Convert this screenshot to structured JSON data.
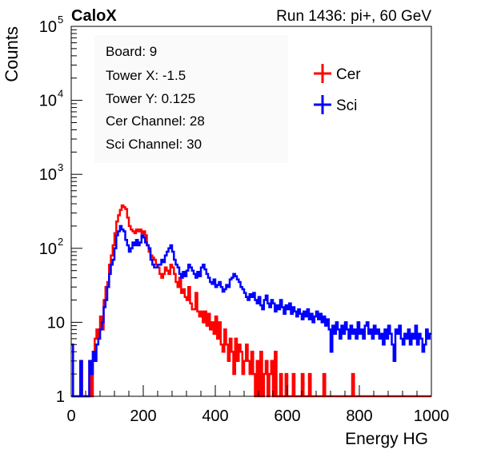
{
  "header": {
    "left_label": "CaloX",
    "right_label": "Run 1436: pi+, 60 GeV"
  },
  "info_box": {
    "lines": [
      "Board: 9",
      "Tower X: -1.5",
      "Tower Y: 0.125",
      "Cer Channel: 28",
      "Sci Channel: 30"
    ]
  },
  "chart_data": {
    "type": "line",
    "style": "step-histogram",
    "xlabel": "Energy HG",
    "ylabel": "Counts",
    "xlim": [
      0,
      1000
    ],
    "ylim": [
      1,
      100000
    ],
    "yscale": "log",
    "grid": false,
    "legend_position": "top-right",
    "x_ticks": [
      "0",
      "200",
      "400",
      "600",
      "800",
      "1000"
    ],
    "y_ticks": [
      {
        "value": 1,
        "base": "1",
        "exp": ""
      },
      {
        "value": 10,
        "base": "10",
        "exp": ""
      },
      {
        "value": 100,
        "base": "10",
        "exp": "2"
      },
      {
        "value": 1000,
        "base": "10",
        "exp": "3"
      },
      {
        "value": 10000,
        "base": "10",
        "exp": "4"
      },
      {
        "value": 100000,
        "base": "10",
        "exp": "5"
      }
    ],
    "series": [
      {
        "name": "Cer",
        "color": "#ff0000",
        "points": [
          [
            0,
            1
          ],
          [
            20,
            1
          ],
          [
            25,
            3
          ],
          [
            30,
            1
          ],
          [
            40,
            1
          ],
          [
            50,
            3
          ],
          [
            55,
            1
          ],
          [
            60,
            4
          ],
          [
            65,
            6
          ],
          [
            70,
            8
          ],
          [
            75,
            6
          ],
          [
            80,
            12
          ],
          [
            85,
            8
          ],
          [
            90,
            20
          ],
          [
            95,
            30
          ],
          [
            100,
            35
          ],
          [
            105,
            60
          ],
          [
            110,
            80
          ],
          [
            115,
            110
          ],
          [
            120,
            160
          ],
          [
            125,
            230
          ],
          [
            130,
            280
          ],
          [
            135,
            330
          ],
          [
            140,
            380
          ],
          [
            145,
            360
          ],
          [
            150,
            340
          ],
          [
            155,
            260
          ],
          [
            160,
            200
          ],
          [
            165,
            180
          ],
          [
            170,
            170
          ],
          [
            175,
            160
          ],
          [
            180,
            180
          ],
          [
            185,
            170
          ],
          [
            190,
            180
          ],
          [
            195,
            160
          ],
          [
            200,
            170
          ],
          [
            205,
            150
          ],
          [
            210,
            110
          ],
          [
            215,
            90
          ],
          [
            220,
            80
          ],
          [
            225,
            75
          ],
          [
            230,
            70
          ],
          [
            235,
            60
          ],
          [
            240,
            55
          ],
          [
            245,
            45
          ],
          [
            250,
            40
          ],
          [
            255,
            45
          ],
          [
            260,
            55
          ],
          [
            265,
            50
          ],
          [
            270,
            45
          ],
          [
            275,
            60
          ],
          [
            280,
            55
          ],
          [
            285,
            45
          ],
          [
            290,
            35
          ],
          [
            295,
            30
          ],
          [
            300,
            40
          ],
          [
            305,
            25
          ],
          [
            310,
            28
          ],
          [
            315,
            22
          ],
          [
            320,
            20
          ],
          [
            325,
            30
          ],
          [
            330,
            18
          ],
          [
            335,
            15
          ],
          [
            340,
            15
          ],
          [
            345,
            25
          ],
          [
            350,
            14
          ],
          [
            355,
            12
          ],
          [
            360,
            14
          ],
          [
            365,
            10
          ],
          [
            370,
            14
          ],
          [
            375,
            9
          ],
          [
            380,
            13
          ],
          [
            385,
            8
          ],
          [
            390,
            10
          ],
          [
            395,
            7
          ],
          [
            400,
            12
          ],
          [
            405,
            6
          ],
          [
            410,
            10
          ],
          [
            415,
            5
          ],
          [
            420,
            4
          ],
          [
            425,
            8
          ],
          [
            430,
            5
          ],
          [
            435,
            3
          ],
          [
            440,
            6
          ],
          [
            445,
            4
          ],
          [
            450,
            2
          ],
          [
            455,
            6
          ],
          [
            460,
            3
          ],
          [
            465,
            5
          ],
          [
            470,
            4
          ],
          [
            475,
            2
          ],
          [
            480,
            3
          ],
          [
            485,
            5
          ],
          [
            490,
            3
          ],
          [
            495,
            2
          ],
          [
            500,
            4
          ],
          [
            505,
            2
          ],
          [
            510,
            1
          ],
          [
            515,
            3
          ],
          [
            520,
            1
          ],
          [
            525,
            4
          ],
          [
            530,
            1
          ],
          [
            535,
            2
          ],
          [
            540,
            3
          ],
          [
            545,
            1
          ],
          [
            550,
            2
          ],
          [
            555,
            3
          ],
          [
            560,
            1
          ],
          [
            565,
            4
          ],
          [
            570,
            1
          ],
          [
            575,
            1
          ],
          [
            580,
            2
          ],
          [
            585,
            1
          ],
          [
            590,
            1
          ],
          [
            595,
            2
          ],
          [
            600,
            1
          ],
          [
            610,
            1
          ],
          [
            615,
            2
          ],
          [
            620,
            1
          ],
          [
            640,
            2
          ],
          [
            645,
            1
          ],
          [
            660,
            2
          ],
          [
            665,
            1
          ],
          [
            700,
            2
          ],
          [
            705,
            1
          ],
          [
            780,
            2
          ],
          [
            785,
            1
          ],
          [
            1000,
            1
          ]
        ]
      },
      {
        "name": "Sci",
        "color": "#0000ff",
        "points": [
          [
            0,
            5
          ],
          [
            5,
            1
          ],
          [
            20,
            1
          ],
          [
            25,
            3
          ],
          [
            30,
            1
          ],
          [
            45,
            1
          ],
          [
            50,
            3
          ],
          [
            55,
            2
          ],
          [
            60,
            4
          ],
          [
            65,
            3
          ],
          [
            70,
            5
          ],
          [
            75,
            6
          ],
          [
            80,
            8
          ],
          [
            85,
            10
          ],
          [
            90,
            16
          ],
          [
            95,
            20
          ],
          [
            100,
            30
          ],
          [
            105,
            45
          ],
          [
            110,
            60
          ],
          [
            115,
            70
          ],
          [
            120,
            100
          ],
          [
            125,
            150
          ],
          [
            130,
            170
          ],
          [
            135,
            200
          ],
          [
            140,
            180
          ],
          [
            145,
            170
          ],
          [
            150,
            130
          ],
          [
            155,
            110
          ],
          [
            160,
            90
          ],
          [
            165,
            100
          ],
          [
            170,
            120
          ],
          [
            175,
            110
          ],
          [
            180,
            130
          ],
          [
            185,
            110
          ],
          [
            190,
            120
          ],
          [
            195,
            150
          ],
          [
            200,
            140
          ],
          [
            205,
            120
          ],
          [
            210,
            110
          ],
          [
            215,
            100
          ],
          [
            220,
            70
          ],
          [
            225,
            60
          ],
          [
            230,
            55
          ],
          [
            235,
            55
          ],
          [
            240,
            60
          ],
          [
            245,
            60
          ],
          [
            250,
            70
          ],
          [
            255,
            65
          ],
          [
            260,
            80
          ],
          [
            265,
            90
          ],
          [
            270,
            100
          ],
          [
            275,
            110
          ],
          [
            280,
            90
          ],
          [
            285,
            70
          ],
          [
            290,
            60
          ],
          [
            295,
            55
          ],
          [
            300,
            45
          ],
          [
            305,
            40
          ],
          [
            310,
            48
          ],
          [
            315,
            42
          ],
          [
            320,
            50
          ],
          [
            325,
            60
          ],
          [
            330,
            55
          ],
          [
            335,
            50
          ],
          [
            340,
            45
          ],
          [
            345,
            40
          ],
          [
            350,
            48
          ],
          [
            355,
            42
          ],
          [
            360,
            55
          ],
          [
            365,
            60
          ],
          [
            370,
            52
          ],
          [
            375,
            45
          ],
          [
            380,
            40
          ],
          [
            385,
            35
          ],
          [
            390,
            33
          ],
          [
            395,
            38
          ],
          [
            400,
            30
          ],
          [
            405,
            32
          ],
          [
            410,
            35
          ],
          [
            415,
            30
          ],
          [
            420,
            26
          ],
          [
            425,
            28
          ],
          [
            430,
            32
          ],
          [
            435,
            30
          ],
          [
            440,
            38
          ],
          [
            445,
            40
          ],
          [
            450,
            45
          ],
          [
            455,
            42
          ],
          [
            460,
            38
          ],
          [
            465,
            35
          ],
          [
            470,
            30
          ],
          [
            475,
            28
          ],
          [
            480,
            25
          ],
          [
            485,
            22
          ],
          [
            490,
            20
          ],
          [
            495,
            24
          ],
          [
            500,
            22
          ],
          [
            505,
            25
          ],
          [
            510,
            20
          ],
          [
            515,
            18
          ],
          [
            520,
            22
          ],
          [
            525,
            17
          ],
          [
            530,
            15
          ],
          [
            535,
            20
          ],
          [
            540,
            23
          ],
          [
            545,
            18
          ],
          [
            550,
            16
          ],
          [
            555,
            20
          ],
          [
            560,
            18
          ],
          [
            565,
            14
          ],
          [
            570,
            17
          ],
          [
            575,
            15
          ],
          [
            580,
            20
          ],
          [
            585,
            16
          ],
          [
            590,
            13
          ],
          [
            595,
            17
          ],
          [
            600,
            15
          ],
          [
            605,
            18
          ],
          [
            610,
            13
          ],
          [
            615,
            16
          ],
          [
            620,
            14
          ],
          [
            625,
            12
          ],
          [
            630,
            15
          ],
          [
            635,
            13
          ],
          [
            640,
            11
          ],
          [
            645,
            14
          ],
          [
            650,
            12
          ],
          [
            655,
            15
          ],
          [
            660,
            11
          ],
          [
            665,
            13
          ],
          [
            670,
            10
          ],
          [
            675,
            12
          ],
          [
            680,
            14
          ],
          [
            685,
            11
          ],
          [
            690,
            13
          ],
          [
            695,
            10
          ],
          [
            700,
            12
          ],
          [
            705,
            9
          ],
          [
            710,
            11
          ],
          [
            715,
            8
          ],
          [
            720,
            4
          ],
          [
            725,
            9
          ],
          [
            730,
            7
          ],
          [
            735,
            10
          ],
          [
            740,
            8
          ],
          [
            745,
            6
          ],
          [
            750,
            9
          ],
          [
            755,
            7
          ],
          [
            760,
            10
          ],
          [
            765,
            8
          ],
          [
            770,
            6
          ],
          [
            775,
            9
          ],
          [
            780,
            7
          ],
          [
            785,
            8
          ],
          [
            790,
            6
          ],
          [
            795,
            10
          ],
          [
            800,
            7
          ],
          [
            805,
            8
          ],
          [
            810,
            6
          ],
          [
            815,
            9
          ],
          [
            820,
            10
          ],
          [
            825,
            7
          ],
          [
            830,
            8
          ],
          [
            835,
            6
          ],
          [
            840,
            9
          ],
          [
            845,
            7
          ],
          [
            850,
            8
          ],
          [
            855,
            6
          ],
          [
            860,
            7
          ],
          [
            865,
            5
          ],
          [
            870,
            8
          ],
          [
            875,
            6
          ],
          [
            880,
            9
          ],
          [
            885,
            7
          ],
          [
            890,
            5
          ],
          [
            895,
            3
          ],
          [
            900,
            8
          ],
          [
            905,
            7
          ],
          [
            910,
            9
          ],
          [
            915,
            6
          ],
          [
            920,
            5
          ],
          [
            925,
            7
          ],
          [
            930,
            6
          ],
          [
            935,
            8
          ],
          [
            940,
            5
          ],
          [
            945,
            7
          ],
          [
            950,
            6
          ],
          [
            955,
            9
          ],
          [
            960,
            5
          ],
          [
            965,
            7
          ],
          [
            970,
            6
          ],
          [
            975,
            4
          ],
          [
            980,
            5
          ],
          [
            985,
            8
          ],
          [
            990,
            6
          ],
          [
            995,
            7
          ],
          [
            1000,
            7
          ]
        ]
      }
    ]
  }
}
